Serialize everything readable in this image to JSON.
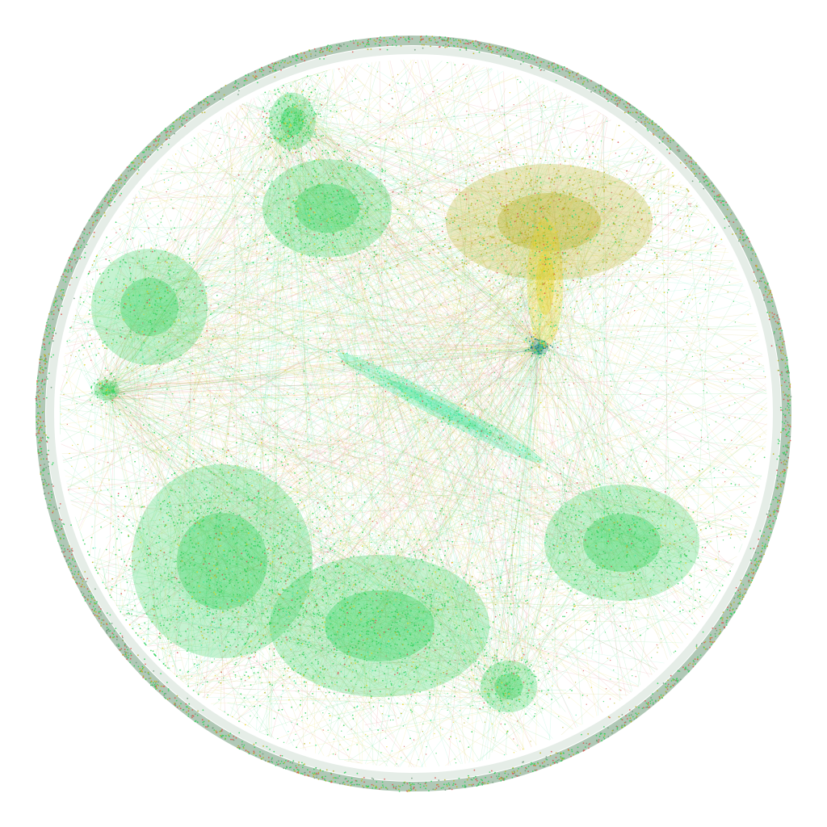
{
  "diagram": {
    "type": "network-graph",
    "layout": "force-directed-circular",
    "background": "#ffffff",
    "rim_color": "#6f9a7a",
    "palette": {
      "green": "#2fd15a",
      "mint": "#3be8a0",
      "olive": "#b8b020",
      "yellow": "#e6d21a",
      "red": "#d9534f",
      "cyan": "#2ad8e0",
      "teal": "#0f7f86"
    },
    "clusters": [
      {
        "id": "top-center-a",
        "color": "green"
      },
      {
        "id": "top-center-b",
        "color": "green"
      },
      {
        "id": "top-right-hub",
        "color": "olive"
      },
      {
        "id": "top-right-spur",
        "color": "yellow"
      },
      {
        "id": "teal-knot",
        "color": "teal"
      },
      {
        "id": "left-mid",
        "color": "green"
      },
      {
        "id": "left-small",
        "color": "green"
      },
      {
        "id": "diagonal-filament",
        "color": "mint"
      },
      {
        "id": "bottom-left-dense",
        "color": "green"
      },
      {
        "id": "bottom-center-dense",
        "color": "green"
      },
      {
        "id": "right-mid",
        "color": "green"
      },
      {
        "id": "bottom-right-small",
        "color": "green"
      }
    ]
  }
}
